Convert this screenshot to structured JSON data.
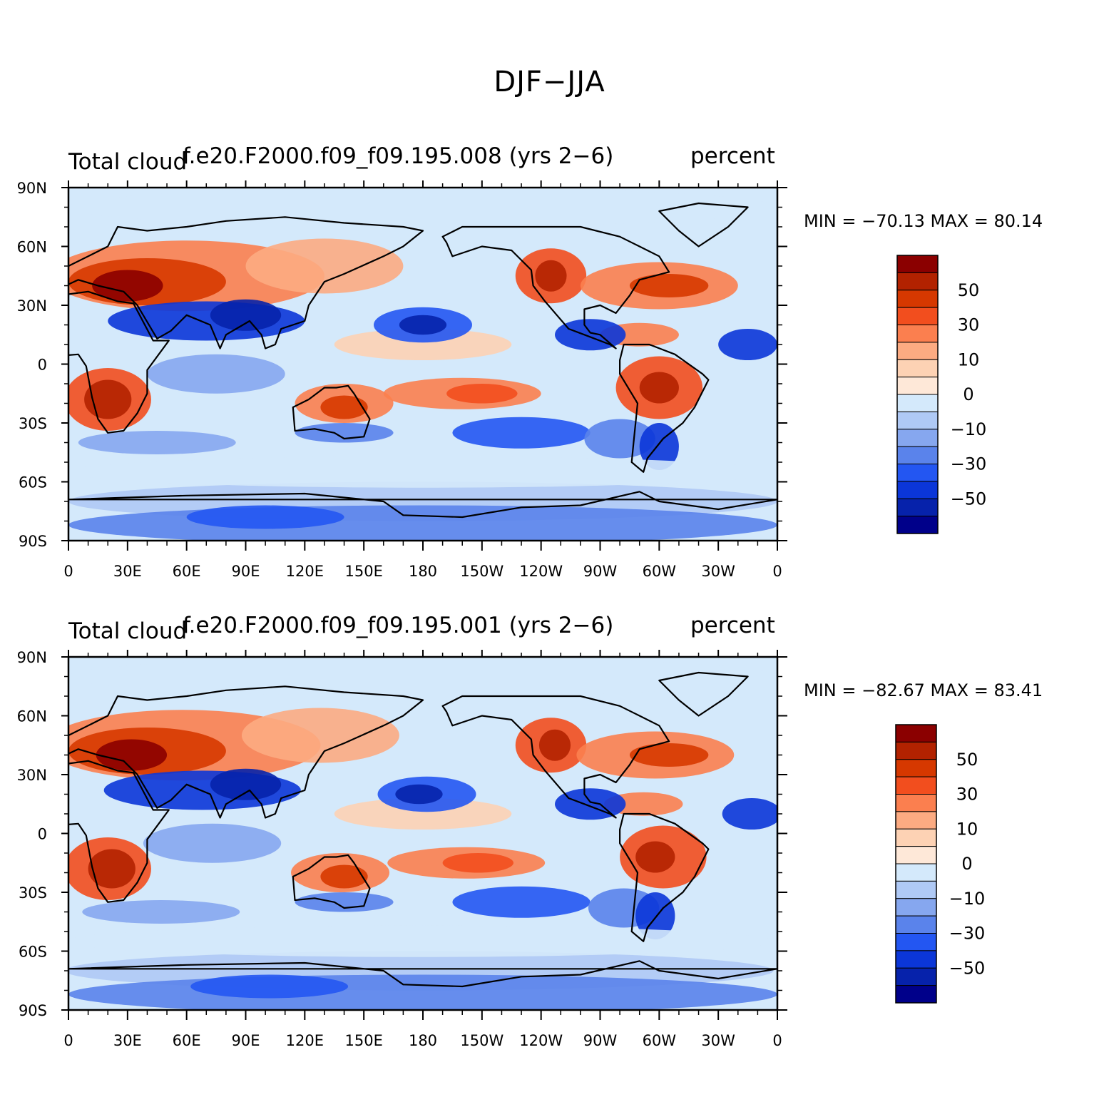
{
  "figure": {
    "title": "DJF−JJA"
  },
  "panels": [
    {
      "label_left": "Total cloud",
      "label_center": "f.e20.F2000.f09_f09.195.008 (yrs 2−6)",
      "label_right": "percent",
      "min_max": "MIN = −70.13 MAX =   80.14"
    },
    {
      "label_left": "Total cloud",
      "label_center": "f.e20.F2000.f09_f09.195.001 (yrs 2−6)",
      "label_right": "percent",
      "min_max": "MIN = −82.67 MAX =   83.41"
    }
  ],
  "axes": {
    "lat_ticks": [
      "90N",
      "60N",
      "30N",
      "0",
      "30S",
      "60S",
      "90S"
    ],
    "lon_ticks": [
      "0",
      "30E",
      "60E",
      "90E",
      "120E",
      "150E",
      "180",
      "150W",
      "120W",
      "90W",
      "60W",
      "30W",
      "0"
    ]
  },
  "colorbar": {
    "colors": [
      "#8b0000",
      "#b22200",
      "#d63800",
      "#f24e1e",
      "#fb7f4f",
      "#fcab82",
      "#fdd2b4",
      "#fee8d8",
      "#d4e9fb",
      "#afc9f5",
      "#86a7ef",
      "#5a83eb",
      "#2356f2",
      "#0b36d8",
      "#0622ab",
      "#00008a"
    ],
    "labels": [
      "50",
      "30",
      "10",
      "0",
      "−10",
      "−30",
      "−50"
    ]
  }
}
